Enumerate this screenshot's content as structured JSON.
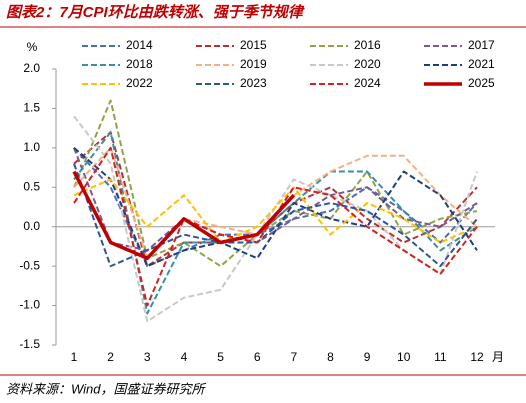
{
  "chart_data": {
    "type": "line",
    "title": "图表2：7月CPI环比由跌转涨、强于季节规律",
    "source": "资料来源：Wind，国盛证券研究所",
    "y_label": "%",
    "x_label": "月",
    "categories": [
      "1",
      "2",
      "3",
      "4",
      "5",
      "6",
      "7",
      "8",
      "9",
      "10",
      "11",
      "12"
    ],
    "ylim": [
      -1.5,
      2.0
    ],
    "yticks": [
      {
        "value": 2.0,
        "label": "2.0"
      },
      {
        "value": 1.5,
        "label": "1.5"
      },
      {
        "value": 1.0,
        "label": "1.0"
      },
      {
        "value": 0.5,
        "label": "0.5"
      },
      {
        "value": 0.0,
        "label": "0.0"
      },
      {
        "value": -0.5,
        "label": "-0.5"
      },
      {
        "value": -1.0,
        "label": "-1.0"
      },
      {
        "value": -1.5,
        "label": "-1.5"
      }
    ],
    "series": [
      {
        "name": "2014",
        "color": "#4a6fb5",
        "dashed": true,
        "values": [
          1.0,
          0.5,
          -0.5,
          -0.3,
          -0.1,
          -0.1,
          0.1,
          0.2,
          0.5,
          0.2,
          -0.2,
          0.3
        ]
      },
      {
        "name": "2015",
        "color": "#b83232",
        "dashed": true,
        "values": [
          0.8,
          1.2,
          -0.5,
          -0.2,
          -0.2,
          -0.1,
          0.3,
          0.5,
          0.1,
          -0.2,
          0.0,
          0.5
        ]
      },
      {
        "name": "2016",
        "color": "#8fa34a",
        "dashed": true,
        "values": [
          0.5,
          1.6,
          -0.4,
          -0.2,
          -0.5,
          -0.1,
          0.2,
          0.1,
          0.7,
          -0.1,
          0.1,
          0.2
        ]
      },
      {
        "name": "2017",
        "color": "#7b5a8c",
        "dashed": true,
        "values": [
          1.0,
          -0.2,
          -0.3,
          0.1,
          -0.1,
          -0.2,
          0.1,
          0.4,
          0.5,
          0.1,
          0.0,
          0.3
        ]
      },
      {
        "name": "2018",
        "color": "#3a8fa0",
        "dashed": true,
        "values": [
          0.6,
          1.2,
          -1.1,
          -0.2,
          -0.2,
          -0.1,
          0.3,
          0.7,
          0.7,
          0.2,
          -0.3,
          0.0
        ]
      },
      {
        "name": "2019",
        "color": "#f4b183",
        "dashed": true,
        "values": [
          0.5,
          1.0,
          -0.4,
          0.1,
          0.0,
          -0.1,
          0.4,
          0.7,
          0.9,
          0.9,
          0.4,
          0.0
        ]
      },
      {
        "name": "2020",
        "color": "#c8c8c8",
        "dashed": true,
        "values": [
          1.4,
          0.8,
          -1.2,
          -0.9,
          -0.8,
          -0.1,
          0.6,
          0.4,
          0.2,
          -0.3,
          -0.6,
          0.7
        ]
      },
      {
        "name": "2021",
        "color": "#1f3f7a",
        "dashed": true,
        "values": [
          1.0,
          0.6,
          -0.5,
          -0.3,
          -0.2,
          -0.4,
          0.3,
          0.1,
          0.0,
          0.7,
          0.4,
          -0.3
        ]
      },
      {
        "name": "2022",
        "color": "#ffc000",
        "dashed": true,
        "values": [
          0.4,
          0.6,
          0.0,
          0.4,
          -0.2,
          0.0,
          0.5,
          -0.1,
          0.3,
          0.1,
          -0.2,
          0.0
        ]
      },
      {
        "name": "2023",
        "color": "#2e5597",
        "dashed": true,
        "values": [
          0.8,
          -0.5,
          -0.3,
          -0.1,
          -0.2,
          -0.2,
          0.2,
          0.3,
          0.2,
          -0.1,
          -0.5,
          0.1
        ]
      },
      {
        "name": "2024",
        "color": "#d42020",
        "dashed": true,
        "values": [
          0.3,
          1.0,
          -1.0,
          0.1,
          -0.1,
          -0.2,
          0.5,
          0.4,
          0.0,
          -0.3,
          -0.6,
          0.0
        ]
      },
      {
        "name": "2025",
        "color": "#c00000",
        "dashed": false,
        "values": [
          0.7,
          -0.2,
          -0.4,
          0.1,
          -0.2,
          -0.1,
          0.4,
          null,
          null,
          null,
          null,
          null
        ]
      }
    ]
  }
}
